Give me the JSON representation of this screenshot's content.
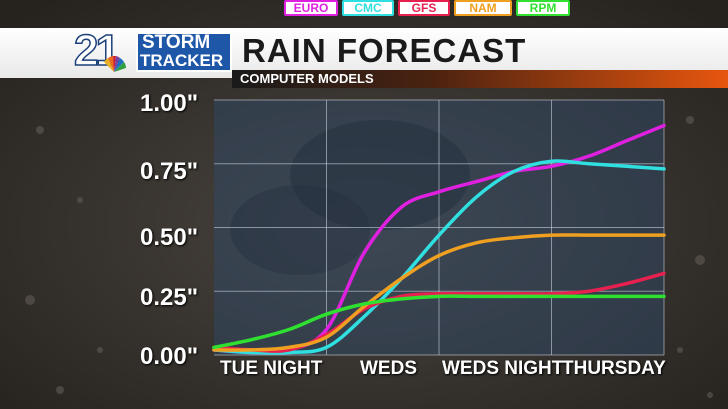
{
  "brand": {
    "channel_number": "21",
    "brand_line1": "STORM",
    "brand_line2": "TRACKER"
  },
  "title": "RAIN FORECAST",
  "subtitle": "COMPUTER MODELS",
  "colors": {
    "euro": "#e020e0",
    "cmc": "#30e0e0",
    "gfs": "#e82050",
    "nam": "#f0a020",
    "rpm": "#30e030"
  },
  "chart_data": {
    "type": "line",
    "title": "RAIN FORECAST",
    "subtitle": "COMPUTER MODELS",
    "xlabel": "",
    "ylabel": "",
    "ylim": [
      0,
      1.0
    ],
    "yticks": [
      "0.00\"",
      "0.25\"",
      "0.50\"",
      "0.75\"",
      "1.00\""
    ],
    "ytick_values": [
      0,
      0.25,
      0.5,
      0.75,
      1.0
    ],
    "categories": [
      "TUE NIGHT",
      "WEDS",
      "WEDS NIGHT",
      "THURSDAY"
    ],
    "x": [
      0,
      1,
      2,
      3,
      4,
      5,
      6,
      7,
      8,
      9,
      10,
      11,
      12
    ],
    "legend_position": "top",
    "grid": true,
    "series": [
      {
        "name": "EURO",
        "color": "#e020e0",
        "values": [
          0.02,
          0.01,
          0.02,
          0.1,
          0.4,
          0.58,
          0.64,
          0.68,
          0.72,
          0.74,
          0.78,
          0.84,
          0.9
        ]
      },
      {
        "name": "CMC",
        "color": "#30e0e0",
        "values": [
          0.02,
          0.01,
          0.01,
          0.03,
          0.15,
          0.3,
          0.47,
          0.62,
          0.72,
          0.76,
          0.75,
          0.74,
          0.73
        ]
      },
      {
        "name": "GFS",
        "color": "#e82050",
        "values": [
          0.03,
          0.02,
          0.02,
          0.08,
          0.18,
          0.23,
          0.24,
          0.24,
          0.24,
          0.24,
          0.25,
          0.28,
          0.32
        ]
      },
      {
        "name": "NAM",
        "color": "#f0a020",
        "values": [
          0.02,
          0.02,
          0.03,
          0.07,
          0.19,
          0.3,
          0.39,
          0.44,
          0.46,
          0.47,
          0.47,
          0.47,
          0.47
        ]
      },
      {
        "name": "RPM",
        "color": "#30e030",
        "values": [
          0.03,
          0.06,
          0.1,
          0.16,
          0.2,
          0.22,
          0.23,
          0.23,
          0.23,
          0.23,
          0.23,
          0.23,
          0.23
        ]
      }
    ]
  }
}
